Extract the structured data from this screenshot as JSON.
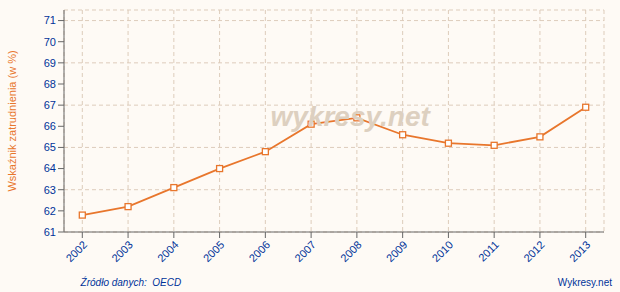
{
  "chart_data": {
    "type": "line",
    "ylabel": "Wskaźnik zatrudnienia (w %)",
    "x": [
      2002,
      2003,
      2004,
      2005,
      2006,
      2007,
      2008,
      2009,
      2010,
      2011,
      2012,
      2013
    ],
    "values": [
      61.8,
      62.2,
      63.1,
      64.0,
      64.8,
      66.1,
      66.4,
      65.6,
      65.2,
      65.1,
      65.5,
      66.9
    ],
    "color": "#e8762c",
    "marker": "square",
    "xlim": [
      2001.6,
      2013.4
    ],
    "xticks": [
      2002,
      2003,
      2004,
      2005,
      2006,
      2007,
      2008,
      2009,
      2010,
      2011,
      2012,
      2013
    ],
    "ylim": [
      61.0,
      71.5
    ],
    "yticks": [
      61,
      62,
      63,
      64,
      65,
      66,
      67,
      68,
      69,
      70,
      71
    ],
    "grid": true,
    "annotations": [
      "wykresy.net",
      "Źródło danych:  OECD",
      "Wykresy.net"
    ]
  }
}
